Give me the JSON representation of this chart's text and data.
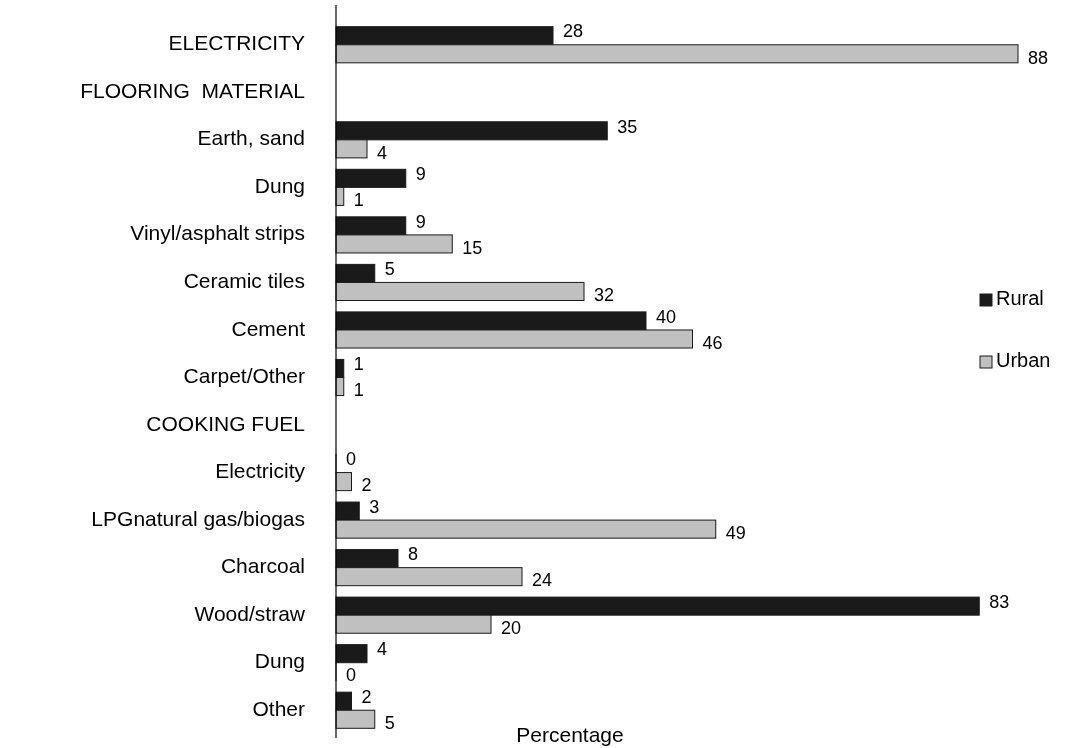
{
  "chart_data": {
    "type": "bar",
    "orientation": "horizontal",
    "xlabel": "Percentage",
    "categories": [
      "ELECTRICITY",
      "FLOORING  MATERIAL",
      "Earth, sand",
      "Dung",
      "Vinyl/asphalt strips",
      "Ceramic tiles",
      "Cement",
      "Carpet/Other",
      "COOKING FUEL",
      "Electricity",
      "LPGnatural gas/biogas",
      "Charcoal",
      "Wood/straw",
      "Dung",
      "Other"
    ],
    "series": [
      {
        "name": "Rural",
        "color": "#1a1a1a",
        "values": [
          28,
          null,
          35,
          9,
          9,
          5,
          40,
          1,
          null,
          0,
          3,
          8,
          83,
          4,
          2
        ]
      },
      {
        "name": "Urban",
        "color": "#c0c0c0",
        "values": [
          88,
          null,
          4,
          1,
          15,
          32,
          46,
          1,
          null,
          2,
          49,
          24,
          20,
          0,
          5
        ]
      }
    ],
    "data_labels": true,
    "legend": "right"
  }
}
